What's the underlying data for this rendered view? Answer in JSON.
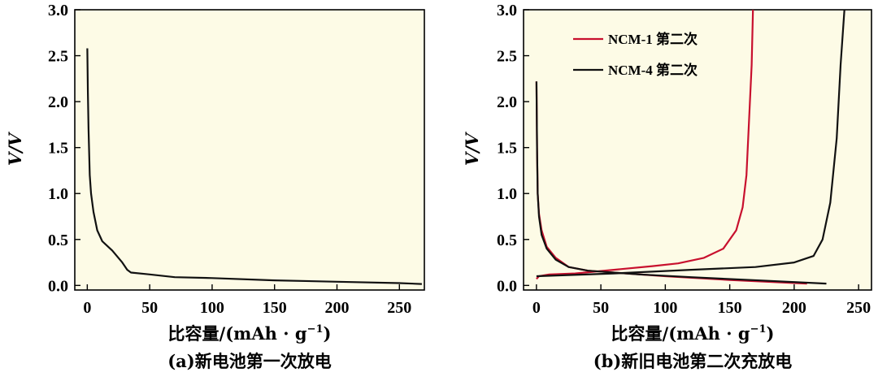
{
  "colors": {
    "plot_bg": "#fdfbe6",
    "red": "#c8102e",
    "black": "#111111"
  },
  "chart_data": [
    {
      "type": "line",
      "caption": "(a)新电池第一次放电",
      "xlabel": "比容量/(mAh · g",
      "xlabel_sup": "−1",
      "xlabel_close": ")",
      "ylabel": "V/V",
      "xlim": [
        -10,
        270
      ],
      "ylim": [
        -0.05,
        3.0
      ],
      "xticks": [
        0,
        50,
        100,
        150,
        200,
        250
      ],
      "xtick_labels": [
        "0",
        "50",
        "100",
        "150",
        "200",
        "250"
      ],
      "yticks": [
        0.0,
        0.5,
        1.0,
        1.5,
        2.0,
        2.5,
        3.0
      ],
      "ytick_labels": [
        "0.0",
        "0.5",
        "1.0",
        "1.5",
        "2.0",
        "2.5",
        "3.0"
      ],
      "grid": false,
      "series": [
        {
          "color": "black",
          "points": [
            [
              0,
              2.58
            ],
            [
              0.5,
              2.1
            ],
            [
              1,
              1.7
            ],
            [
              2,
              1.2
            ],
            [
              3,
              1.0
            ],
            [
              5,
              0.8
            ],
            [
              8,
              0.6
            ],
            [
              12,
              0.48
            ],
            [
              20,
              0.38
            ],
            [
              28,
              0.25
            ],
            [
              32,
              0.17
            ],
            [
              35,
              0.14
            ],
            [
              50,
              0.12
            ],
            [
              70,
              0.09
            ],
            [
              100,
              0.08
            ],
            [
              150,
              0.055
            ],
            [
              200,
              0.04
            ],
            [
              250,
              0.025
            ],
            [
              268,
              0.015
            ]
          ]
        }
      ]
    },
    {
      "type": "line",
      "caption": "(b)新旧电池第二次充放电",
      "xlabel": "比容量/(mAh · g",
      "xlabel_sup": "−1",
      "xlabel_close": ")",
      "ylabel": "V/V",
      "xlim": [
        -10,
        260
      ],
      "ylim": [
        -0.05,
        3.0
      ],
      "xticks": [
        0,
        50,
        100,
        150,
        200,
        250
      ],
      "xtick_labels": [
        "0",
        "50",
        "100",
        "150",
        "200",
        "250"
      ],
      "yticks": [
        0.0,
        0.5,
        1.0,
        1.5,
        2.0,
        2.5,
        3.0
      ],
      "ytick_labels": [
        "0.0",
        "0.5",
        "1.0",
        "1.5",
        "2.0",
        "2.5",
        "3.0"
      ],
      "grid": false,
      "legend_position": "top-left",
      "series": [
        {
          "name": "NCM-1 第二次",
          "color": "red",
          "discharge": [
            [
              0,
              2.22
            ],
            [
              0.5,
              1.5
            ],
            [
              1,
              1.0
            ],
            [
              2,
              0.78
            ],
            [
              4,
              0.6
            ],
            [
              8,
              0.42
            ],
            [
              15,
              0.3
            ],
            [
              25,
              0.2
            ],
            [
              40,
              0.16
            ],
            [
              70,
              0.13
            ],
            [
              100,
              0.1
            ],
            [
              150,
              0.06
            ],
            [
              210,
              0.02
            ]
          ],
          "charge": [
            [
              0,
              0.07
            ],
            [
              2,
              0.1
            ],
            [
              10,
              0.12
            ],
            [
              30,
              0.13
            ],
            [
              60,
              0.17
            ],
            [
              90,
              0.21
            ],
            [
              110,
              0.24
            ],
            [
              130,
              0.3
            ],
            [
              145,
              0.4
            ],
            [
              155,
              0.6
            ],
            [
              160,
              0.85
            ],
            [
              163,
              1.2
            ],
            [
              165,
              1.8
            ],
            [
              167,
              2.4
            ],
            [
              168,
              3.0
            ]
          ]
        },
        {
          "name": "NCM-4 第二次",
          "color": "black",
          "discharge": [
            [
              0,
              2.22
            ],
            [
              0.5,
              1.5
            ],
            [
              1,
              1.0
            ],
            [
              2,
              0.75
            ],
            [
              4,
              0.55
            ],
            [
              8,
              0.4
            ],
            [
              15,
              0.28
            ],
            [
              25,
              0.2
            ],
            [
              40,
              0.16
            ],
            [
              80,
              0.12
            ],
            [
              120,
              0.09
            ],
            [
              180,
              0.05
            ],
            [
              225,
              0.02
            ]
          ],
          "charge": [
            [
              0,
              0.1
            ],
            [
              20,
              0.11
            ],
            [
              60,
              0.13
            ],
            [
              120,
              0.17
            ],
            [
              170,
              0.2
            ],
            [
              200,
              0.25
            ],
            [
              215,
              0.32
            ],
            [
              222,
              0.5
            ],
            [
              228,
              0.9
            ],
            [
              233,
              1.6
            ],
            [
              236,
              2.4
            ],
            [
              239,
              3.0
            ]
          ]
        }
      ]
    }
  ]
}
